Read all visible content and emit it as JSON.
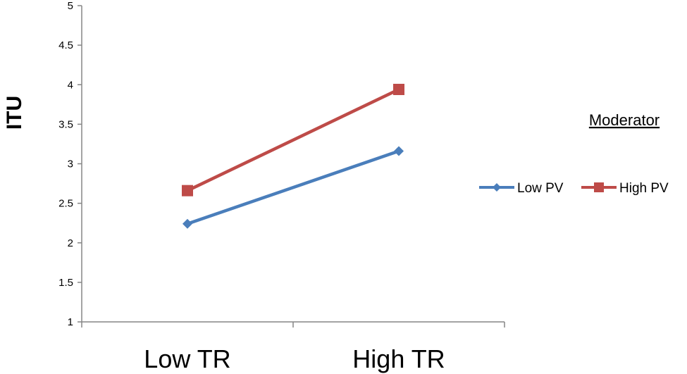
{
  "chart_data": {
    "type": "line",
    "title": "",
    "xlabel": "",
    "ylabel": "ITU",
    "categories": [
      "Low TR",
      "High TR"
    ],
    "ylim": [
      1,
      5
    ],
    "yticks": [
      1,
      1.5,
      2,
      2.5,
      3,
      3.5,
      4,
      4.5,
      5
    ],
    "ytick_labels": [
      "1",
      "1.5",
      "2",
      "2.5",
      "3",
      "3.5",
      "4",
      "4.5",
      "5"
    ],
    "grid": false,
    "legend": {
      "title": "Moderator",
      "placement": "right"
    },
    "series": [
      {
        "name": "Low PV",
        "values": [
          2.24,
          3.16
        ],
        "color": "#4a7ebb",
        "marker": "diamond"
      },
      {
        "name": "High PV",
        "values": [
          2.66,
          3.94
        ],
        "color": "#be4b48",
        "marker": "square"
      }
    ]
  }
}
